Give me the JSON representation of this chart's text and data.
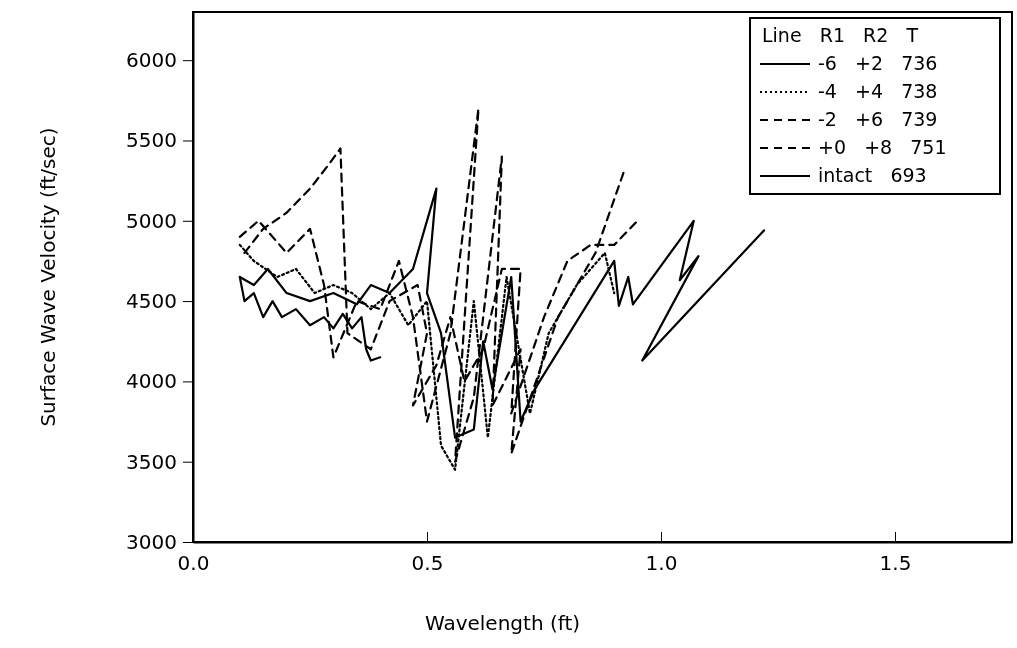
{
  "chart_data": {
    "type": "line",
    "xlabel": "Wavelength (ft)",
    "ylabel": "Surface Wave Velocity (ft/sec)",
    "xlim": [
      0,
      1.75
    ],
    "ylim": [
      3000,
      6300
    ],
    "xticks": [
      {
        "value": 0,
        "label": "0.0"
      },
      0.5,
      {
        "value": 1,
        "label": "1.0"
      },
      1.5
    ],
    "yticks": [
      3000,
      3500,
      4000,
      4500,
      5000,
      5500,
      6000
    ],
    "grid": false,
    "legend": "top right",
    "legend_title": "Line   R1   R2   T",
    "marker": "none",
    "series": [
      {
        "name": "-6   +2   736",
        "color": "#000000",
        "line_style": "solid",
        "x": [
          0.1,
          0.13,
          0.16,
          0.2,
          0.25,
          0.3,
          0.35,
          0.38,
          0.42,
          0.47,
          0.52,
          0.5,
          0.53,
          0.56,
          0.6,
          0.62,
          0.64,
          0.68,
          0.7,
          0.73,
          0.9,
          0.91,
          0.93,
          0.94,
          1.07,
          1.04,
          1.08,
          0.96,
          1.22
        ],
        "values": [
          4650,
          4600,
          4700,
          4550,
          4500,
          4550,
          4480,
          4600,
          4550,
          4700,
          5200,
          4550,
          4300,
          3650,
          3700,
          4250,
          3950,
          4650,
          3750,
          3950,
          4750,
          4470,
          4650,
          4480,
          5000,
          4630,
          4780,
          4130,
          4940
        ]
      },
      {
        "name": "-4   +4   738",
        "color": "#000000",
        "line_style": "dotted",
        "x": [
          0.1,
          0.13,
          0.18,
          0.22,
          0.26,
          0.3,
          0.34,
          0.38,
          0.42,
          0.46,
          0.5,
          0.53,
          0.56,
          0.6,
          0.63,
          0.67,
          0.72,
          0.76,
          0.82,
          0.88,
          0.9
        ],
        "values": [
          4850,
          4750,
          4650,
          4700,
          4550,
          4600,
          4550,
          4450,
          4550,
          4350,
          4500,
          3600,
          3450,
          4500,
          3650,
          4650,
          3800,
          4300,
          4600,
          4800,
          4550
        ]
      },
      {
        "name": "-2   +6   739",
        "color": "#000000",
        "line_style": "dashed",
        "x": [
          0.1,
          0.14,
          0.2,
          0.25,
          0.28,
          0.3,
          0.35,
          0.4,
          0.44,
          0.47,
          0.5,
          0.55,
          0.61,
          0.56,
          0.6,
          0.66,
          0.64,
          0.7,
          0.68,
          0.78,
          0.86,
          0.92
        ],
        "values": [
          4900,
          5000,
          4800,
          4950,
          4600,
          4150,
          4500,
          4450,
          4750,
          4400,
          3750,
          4300,
          5700,
          3500,
          3900,
          5400,
          3850,
          4200,
          3550,
          4400,
          4800,
          5300
        ]
      },
      {
        "name": "+0   +8   751",
        "color": "#000000",
        "line_style": "dashed",
        "x": [
          0.11,
          0.15,
          0.2,
          0.25,
          0.29,
          0.315,
          0.33,
          0.38,
          0.42,
          0.48,
          0.5,
          0.47,
          0.52,
          0.55,
          0.58,
          0.62,
          0.66,
          0.7,
          0.68,
          0.75,
          0.8,
          0.85,
          0.9,
          0.95
        ],
        "values": [
          4800,
          4950,
          5050,
          5200,
          5350,
          5450,
          4300,
          4200,
          4500,
          4600,
          4300,
          3850,
          4100,
          4400,
          4000,
          4200,
          4700,
          4700,
          3800,
          4400,
          4750,
          4850,
          4850,
          5000
        ]
      },
      {
        "name": "intact   693",
        "color": "#000000",
        "line_style": "solid",
        "x": [
          0.1,
          0.11,
          0.13,
          0.15,
          0.17,
          0.19,
          0.22,
          0.25,
          0.28,
          0.3,
          0.32,
          0.34,
          0.36,
          0.37,
          0.38,
          0.4
        ],
        "values": [
          4650,
          4500,
          4550,
          4400,
          4500,
          4400,
          4450,
          4350,
          4400,
          4330,
          4420,
          4330,
          4400,
          4200,
          4130,
          4150
        ]
      }
    ]
  }
}
